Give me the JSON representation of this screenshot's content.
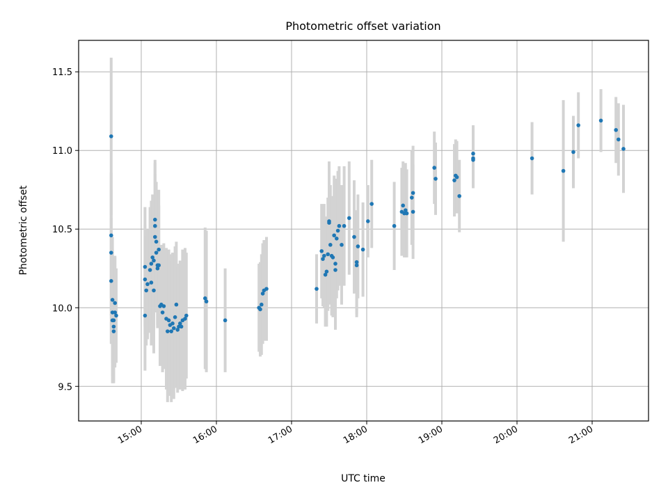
{
  "chart_data": {
    "type": "scatter",
    "title": "Photometric offset variation",
    "xlabel": "UTC time",
    "ylabel": "Photometric offset",
    "xlim": [
      "14:10",
      "21:45"
    ],
    "ylim": [
      9.28,
      11.7
    ],
    "grid": true,
    "x_ticks": [
      "15:00",
      "16:00",
      "17:00",
      "18:00",
      "19:00",
      "20:00",
      "21:00"
    ],
    "y_ticks": [
      "9.5",
      "10.0",
      "10.5",
      "11.0",
      "11.5"
    ],
    "colors": {
      "point": "#1f77b4",
      "errorbar": "#d3d3d3"
    },
    "series": [
      {
        "points": [
          {
            "x": "14:36",
            "y": 11.09,
            "err": 0.5
          },
          {
            "x": "14:36",
            "y": 10.46,
            "err": 0.4
          },
          {
            "x": "14:36",
            "y": 10.35,
            "err": 0.4
          },
          {
            "x": "14:36",
            "y": 10.17,
            "err": 0.4
          },
          {
            "x": "14:37",
            "y": 10.05,
            "err": 0.4
          },
          {
            "x": "14:37",
            "y": 9.97,
            "err": 0.4
          },
          {
            "x": "14:37",
            "y": 9.92,
            "err": 0.4
          },
          {
            "x": "14:38",
            "y": 9.88,
            "err": 0.35
          },
          {
            "x": "14:38",
            "y": 9.85,
            "err": 0.33
          },
          {
            "x": "14:38",
            "y": 9.92,
            "err": 0.35
          },
          {
            "x": "14:39",
            "y": 9.97,
            "err": 0.35
          },
          {
            "x": "14:39",
            "y": 10.03,
            "err": 0.3
          },
          {
            "x": "14:40",
            "y": 9.95,
            "err": 0.3
          },
          {
            "x": "15:03",
            "y": 10.26,
            "err": 0.38
          },
          {
            "x": "15:03",
            "y": 10.18,
            "err": 0.35
          },
          {
            "x": "15:03",
            "y": 9.95,
            "err": 0.35
          },
          {
            "x": "15:04",
            "y": 10.11,
            "err": 0.35
          },
          {
            "x": "15:05",
            "y": 10.15,
            "err": 0.35
          },
          {
            "x": "15:07",
            "y": 10.24,
            "err": 0.4
          },
          {
            "x": "15:08",
            "y": 10.16,
            "err": 0.4
          },
          {
            "x": "15:08",
            "y": 10.28,
            "err": 0.4
          },
          {
            "x": "15:09",
            "y": 10.32,
            "err": 0.4
          },
          {
            "x": "15:10",
            "y": 10.11,
            "err": 0.4
          },
          {
            "x": "15:10",
            "y": 10.3,
            "err": 0.4
          },
          {
            "x": "15:11",
            "y": 10.52,
            "err": 0.4
          },
          {
            "x": "15:11",
            "y": 10.56,
            "err": 0.38
          },
          {
            "x": "15:11",
            "y": 10.45,
            "err": 0.4
          },
          {
            "x": "15:12",
            "y": 10.42,
            "err": 0.38
          },
          {
            "x": "15:12",
            "y": 10.35,
            "err": 0.38
          },
          {
            "x": "15:13",
            "y": 10.27,
            "err": 0.38
          },
          {
            "x": "15:13",
            "y": 10.25,
            "err": 0.38
          },
          {
            "x": "15:14",
            "y": 10.37,
            "err": 0.38
          },
          {
            "x": "15:14",
            "y": 10.27,
            "err": 0.38
          },
          {
            "x": "15:15",
            "y": 10.01,
            "err": 0.38
          },
          {
            "x": "15:16",
            "y": 10.02,
            "err": 0.38
          },
          {
            "x": "15:17",
            "y": 9.97,
            "err": 0.38
          },
          {
            "x": "15:18",
            "y": 10.01,
            "err": 0.4
          },
          {
            "x": "15:20",
            "y": 9.93,
            "err": 0.45
          },
          {
            "x": "15:21",
            "y": 9.85,
            "err": 0.45
          },
          {
            "x": "15:22",
            "y": 9.92,
            "err": 0.45
          },
          {
            "x": "15:23",
            "y": 9.89,
            "err": 0.45
          },
          {
            "x": "15:24",
            "y": 9.85,
            "err": 0.45
          },
          {
            "x": "15:25",
            "y": 9.9,
            "err": 0.45
          },
          {
            "x": "15:26",
            "y": 9.87,
            "err": 0.45
          },
          {
            "x": "15:27",
            "y": 9.94,
            "err": 0.45
          },
          {
            "x": "15:28",
            "y": 10.02,
            "err": 0.4
          },
          {
            "x": "15:29",
            "y": 9.86,
            "err": 0.4
          },
          {
            "x": "15:30",
            "y": 9.88,
            "err": 0.4
          },
          {
            "x": "15:31",
            "y": 9.9,
            "err": 0.4
          },
          {
            "x": "15:32",
            "y": 9.88,
            "err": 0.4
          },
          {
            "x": "15:33",
            "y": 9.92,
            "err": 0.45
          },
          {
            "x": "15:35",
            "y": 9.93,
            "err": 0.45
          },
          {
            "x": "15:36",
            "y": 9.95,
            "err": 0.4
          },
          {
            "x": "15:51",
            "y": 10.06,
            "err": 0.45
          },
          {
            "x": "15:52",
            "y": 10.04,
            "err": 0.45
          },
          {
            "x": "16:07",
            "y": 9.92,
            "err": 0.33
          },
          {
            "x": "16:34",
            "y": 10.0,
            "err": 0.28
          },
          {
            "x": "16:35",
            "y": 9.99,
            "err": 0.3
          },
          {
            "x": "16:36",
            "y": 10.02,
            "err": 0.32
          },
          {
            "x": "16:37",
            "y": 10.09,
            "err": 0.32
          },
          {
            "x": "16:38",
            "y": 10.11,
            "err": 0.32
          },
          {
            "x": "16:40",
            "y": 10.12,
            "err": 0.33
          },
          {
            "x": "17:20",
            "y": 10.12,
            "err": 0.22
          },
          {
            "x": "17:24",
            "y": 10.36,
            "err": 0.3
          },
          {
            "x": "17:25",
            "y": 10.31,
            "err": 0.3
          },
          {
            "x": "17:26",
            "y": 10.33,
            "err": 0.33
          },
          {
            "x": "17:27",
            "y": 10.21,
            "err": 0.33
          },
          {
            "x": "17:28",
            "y": 10.23,
            "err": 0.35
          },
          {
            "x": "17:29",
            "y": 10.34,
            "err": 0.36
          },
          {
            "x": "17:30",
            "y": 10.55,
            "err": 0.38
          },
          {
            "x": "17:30",
            "y": 10.54,
            "err": 0.38
          },
          {
            "x": "17:31",
            "y": 10.4,
            "err": 0.38
          },
          {
            "x": "17:32",
            "y": 10.33,
            "err": 0.38
          },
          {
            "x": "17:33",
            "y": 10.32,
            "err": 0.38
          },
          {
            "x": "17:34",
            "y": 10.46,
            "err": 0.38
          },
          {
            "x": "17:35",
            "y": 10.28,
            "err": 0.38
          },
          {
            "x": "17:35",
            "y": 10.24,
            "err": 0.38
          },
          {
            "x": "17:36",
            "y": 10.44,
            "err": 0.38
          },
          {
            "x": "17:37",
            "y": 10.49,
            "err": 0.38
          },
          {
            "x": "17:38",
            "y": 10.52,
            "err": 0.38
          },
          {
            "x": "17:40",
            "y": 10.4,
            "err": 0.38
          },
          {
            "x": "17:42",
            "y": 10.52,
            "err": 0.38
          },
          {
            "x": "17:46",
            "y": 10.57,
            "err": 0.36
          },
          {
            "x": "17:50",
            "y": 10.45,
            "err": 0.36
          },
          {
            "x": "17:52",
            "y": 10.29,
            "err": 0.33
          },
          {
            "x": "17:52",
            "y": 10.27,
            "err": 0.33
          },
          {
            "x": "17:53",
            "y": 10.39,
            "err": 0.33
          },
          {
            "x": "17:57",
            "y": 10.37,
            "err": 0.3
          },
          {
            "x": "18:01",
            "y": 10.55,
            "err": 0.23
          },
          {
            "x": "18:04",
            "y": 10.66,
            "err": 0.28
          },
          {
            "x": "18:22",
            "y": 10.52,
            "err": 0.28
          },
          {
            "x": "18:28",
            "y": 10.61,
            "err": 0.28
          },
          {
            "x": "18:29",
            "y": 10.65,
            "err": 0.28
          },
          {
            "x": "18:30",
            "y": 10.6,
            "err": 0.28
          },
          {
            "x": "18:31",
            "y": 10.62,
            "err": 0.3
          },
          {
            "x": "18:32",
            "y": 10.6,
            "err": 0.28
          },
          {
            "x": "18:36",
            "y": 10.7,
            "err": 0.3
          },
          {
            "x": "18:37",
            "y": 10.73,
            "err": 0.3
          },
          {
            "x": "18:37",
            "y": 10.61,
            "err": 0.3
          },
          {
            "x": "18:54",
            "y": 10.89,
            "err": 0.23
          },
          {
            "x": "18:55",
            "y": 10.82,
            "err": 0.23
          },
          {
            "x": "19:10",
            "y": 10.81,
            "err": 0.23
          },
          {
            "x": "19:11",
            "y": 10.84,
            "err": 0.23
          },
          {
            "x": "19:12",
            "y": 10.83,
            "err": 0.23
          },
          {
            "x": "19:14",
            "y": 10.71,
            "err": 0.23
          },
          {
            "x": "19:25",
            "y": 10.98,
            "err": 0.18
          },
          {
            "x": "19:25",
            "y": 10.95,
            "err": 0.18
          },
          {
            "x": "19:25",
            "y": 10.94,
            "err": 0.18
          },
          {
            "x": "20:12",
            "y": 10.95,
            "err": 0.23
          },
          {
            "x": "20:37",
            "y": 10.87,
            "err": 0.45
          },
          {
            "x": "20:45",
            "y": 10.99,
            "err": 0.23
          },
          {
            "x": "20:49",
            "y": 11.16,
            "err": 0.21
          },
          {
            "x": "21:07",
            "y": 11.19,
            "err": 0.2
          },
          {
            "x": "21:19",
            "y": 11.13,
            "err": 0.21
          },
          {
            "x": "21:21",
            "y": 11.07,
            "err": 0.23
          },
          {
            "x": "21:25",
            "y": 11.01,
            "err": 0.28
          }
        ]
      }
    ]
  }
}
